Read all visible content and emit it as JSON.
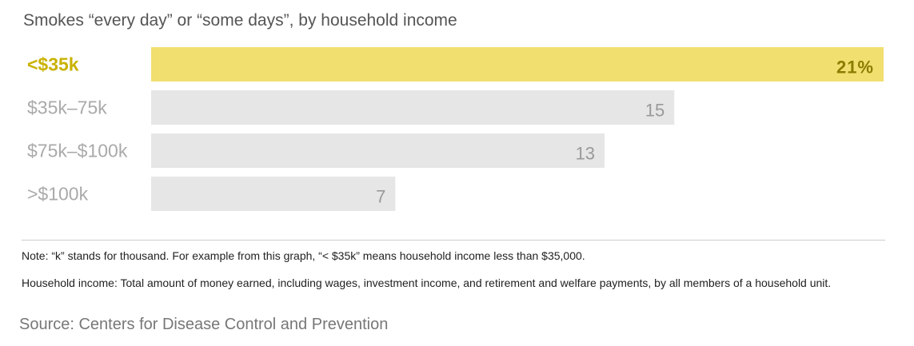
{
  "chart_data": {
    "type": "bar",
    "orientation": "horizontal",
    "title": "Smokes “every day” or “some days”, by household income",
    "categories": [
      "<$35k",
      "$35k–75k",
      "$75k–$100k",
      ">$100k"
    ],
    "values": [
      21,
      15,
      13,
      7
    ],
    "value_labels": [
      "21%",
      "15",
      "13",
      "7"
    ],
    "highlight_index": 0,
    "xlim": [
      0,
      21
    ],
    "grid": false,
    "legend": "none",
    "colors": {
      "highlight": "#f1df6f",
      "bar": "#e6e6e6",
      "highlight_label": "#c9b200",
      "label": "#aaaaaa"
    }
  },
  "notes": {
    "note": "Note:  “k” stands for thousand.  For example from this graph, “< $35k” means household income less than $35,000.",
    "definition": "Household income:  Total amount of money earned, including wages, investment income, and retirement and welfare payments, by all members of a household unit."
  },
  "source": "Source: Centers for Disease Control and Prevention"
}
